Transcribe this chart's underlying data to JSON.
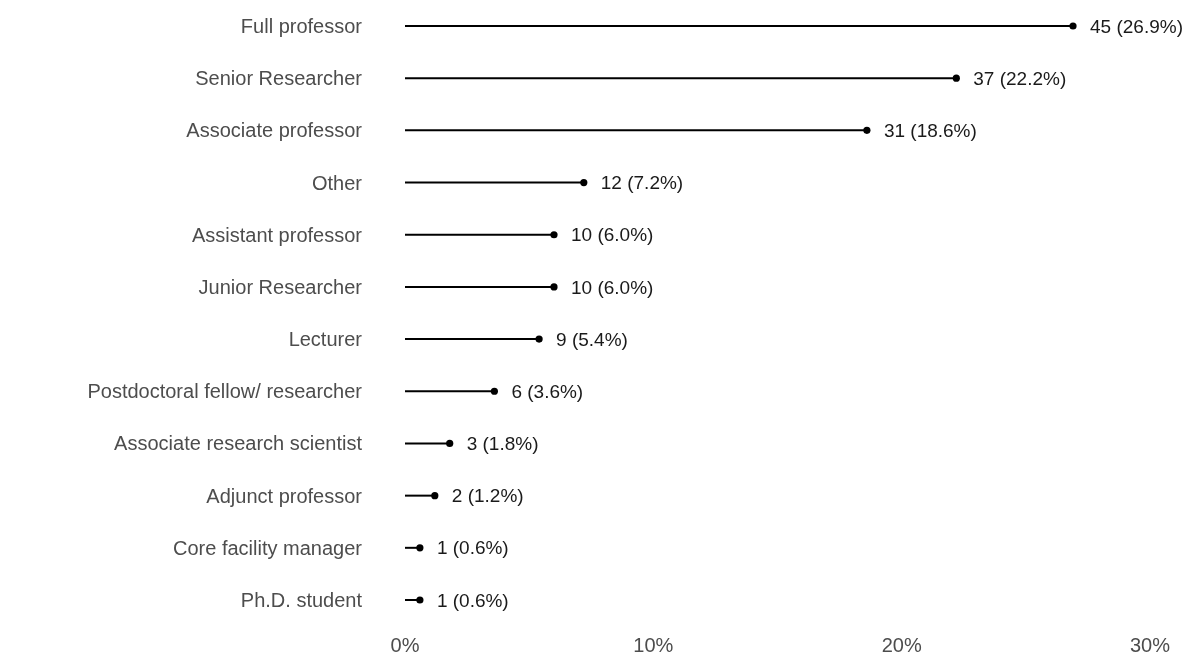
{
  "chart_data": {
    "type": "lollipop",
    "orientation": "horizontal",
    "categories": [
      "Full professor",
      "Senior Researcher",
      "Associate professor",
      "Other",
      "Assistant professor",
      "Junior Researcher",
      "Lecturer",
      "Postdoctoral fellow/ researcher",
      "Associate research scientist",
      "Adjunct professor",
      "Core facility manager",
      "Ph.D. student"
    ],
    "values": [
      26.9,
      22.2,
      18.6,
      7.2,
      6.0,
      6.0,
      5.4,
      3.6,
      1.8,
      1.2,
      0.6,
      0.6
    ],
    "value_labels": [
      "45 (26.9%)",
      "37 (22.2%)",
      "31 (18.6%)",
      "12 (7.2%)",
      "10 (6.0%)",
      "10 (6.0%)",
      "9 (5.4%)",
      "6 (3.6%)",
      "3 (1.8%)",
      "2 (1.2%)",
      "1 (0.6%)",
      "1 (0.6%)"
    ],
    "color": "#000000",
    "marker": "circle",
    "grid": false,
    "xlim": [
      0,
      30
    ],
    "xticks": [
      {
        "value": 0,
        "label": "0%"
      },
      {
        "value": 10,
        "label": "10%"
      },
      {
        "value": 20,
        "label": "20%"
      },
      {
        "value": 30,
        "label": "30%"
      }
    ]
  }
}
